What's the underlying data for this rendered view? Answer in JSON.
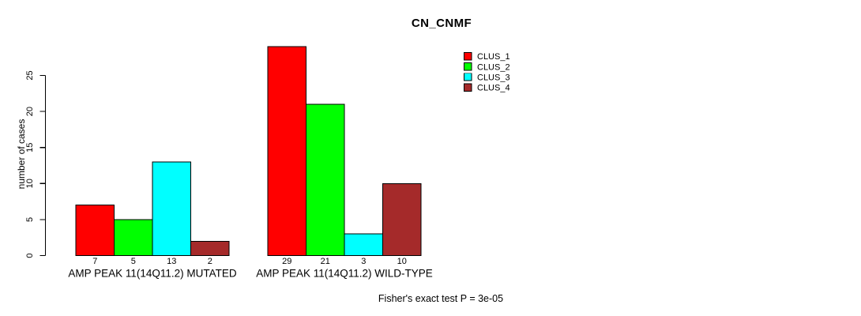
{
  "title": "CN_CNMF",
  "y_axis": {
    "label": "number of cases",
    "ticks": [
      0,
      5,
      10,
      15,
      20,
      25
    ]
  },
  "footnote": "Fisher's exact test P = 3e-05",
  "chart_data": {
    "type": "bar",
    "title": "CN_CNMF",
    "xlabel": "",
    "ylabel": "number of cases",
    "ylim": [
      0,
      25
    ],
    "yticks": [
      0,
      5,
      10,
      15,
      20,
      25
    ],
    "grid": false,
    "legend_position": "top-right",
    "bar_value_labels": true,
    "categories": [
      "AMP PEAK 11(14Q11.2) MUTATED",
      "AMP PEAK 11(14Q11.2) WILD-TYPE"
    ],
    "series": [
      {
        "name": "CLUS_1",
        "color": "#FF0000",
        "values": [
          7,
          29
        ]
      },
      {
        "name": "CLUS_2",
        "color": "#00FF00",
        "values": [
          5,
          21
        ]
      },
      {
        "name": "CLUS_3",
        "color": "#00FFFF",
        "values": [
          13,
          3
        ]
      },
      {
        "name": "CLUS_4",
        "color": "#A52A2A",
        "values": [
          2,
          10
        ]
      }
    ],
    "annotation": "Fisher's exact test P = 3e-05"
  }
}
